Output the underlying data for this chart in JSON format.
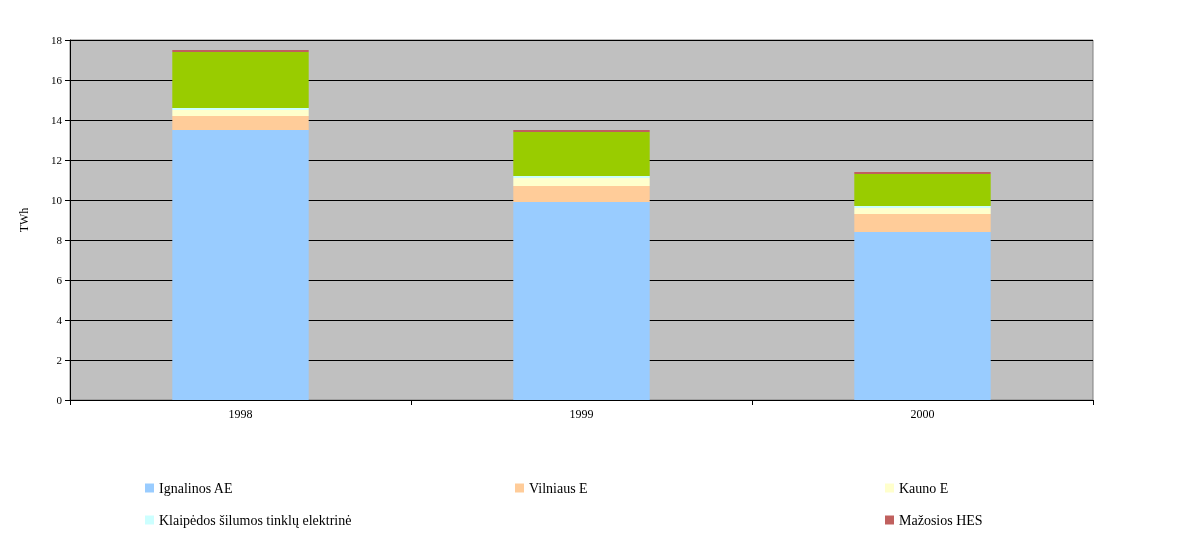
{
  "chart_data": {
    "type": "bar",
    "stacked": true,
    "ylabel": "TWh",
    "categories": [
      "1998",
      "1999",
      "2000"
    ],
    "series": [
      {
        "name": "Ignalinos AE",
        "color": "#99ccff",
        "values": [
          13.5,
          9.9,
          8.4
        ]
      },
      {
        "name": "Vilniaus E",
        "color": "#ffcc99",
        "values": [
          0.7,
          0.8,
          0.9
        ]
      },
      {
        "name": "Kauno E",
        "color": "#ffffcc",
        "values": [
          0.3,
          0.4,
          0.3
        ]
      },
      {
        "name": "Klaipėdos šilumos tinklų elektrinė",
        "color": "#ccffff",
        "values": [
          0.1,
          0.1,
          0.1
        ]
      },
      {
        "color": "#99cc00",
        "values": [
          2.8,
          2.2,
          1.6
        ]
      },
      {
        "name": "Mažosios HES",
        "color": "#c0605e",
        "values": [
          0.1,
          0.1,
          0.1
        ]
      }
    ],
    "ylim": [
      0,
      18
    ],
    "yticks": [
      0,
      2,
      4,
      6,
      8,
      10,
      12,
      14,
      16,
      18
    ],
    "grid": true,
    "legend": "bottom"
  }
}
